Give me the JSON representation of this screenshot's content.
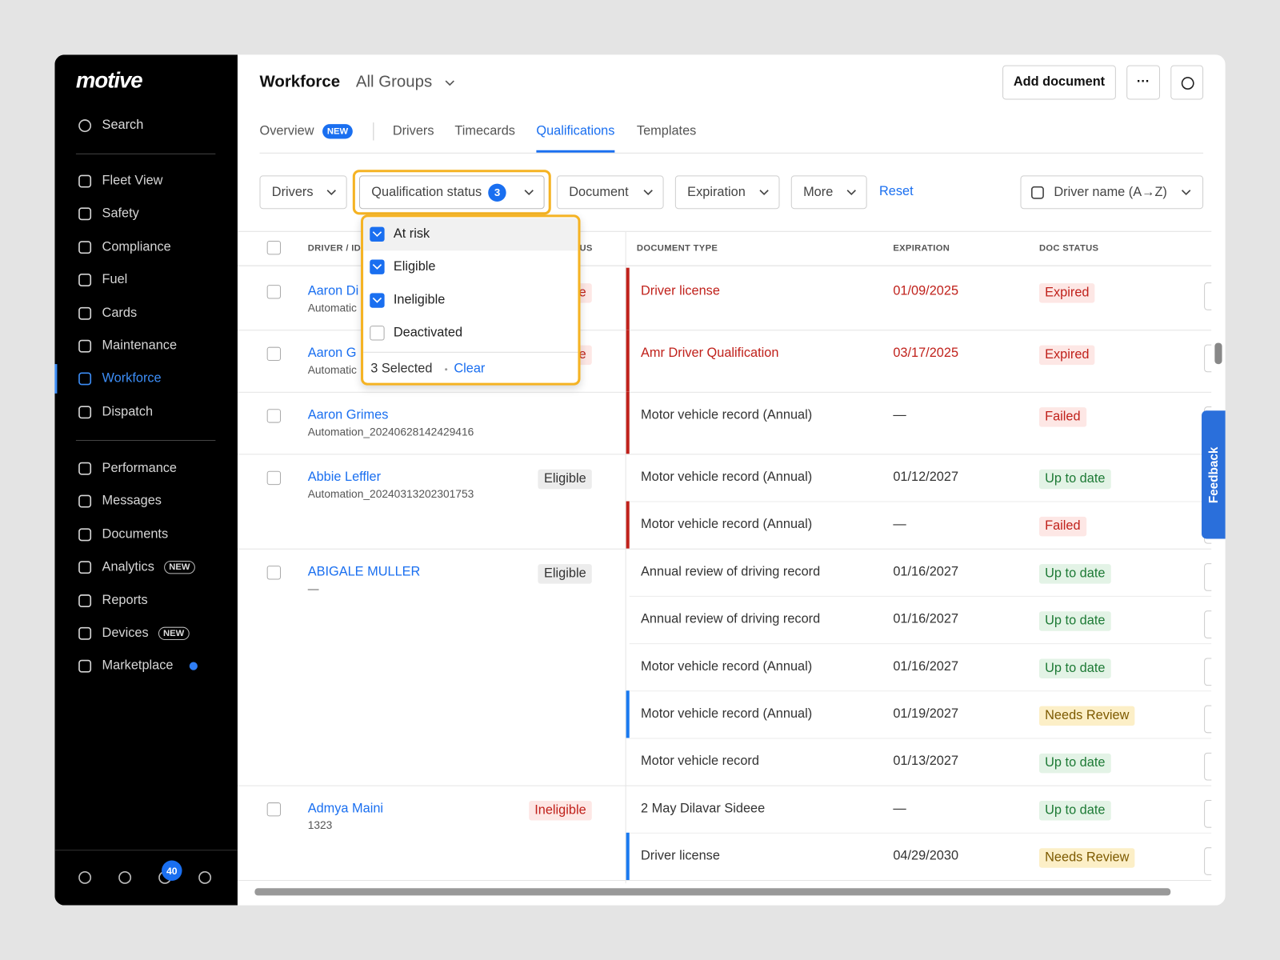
{
  "logo": "motive",
  "sidebar": {
    "search": "Search",
    "nav": [
      {
        "label": "Fleet View"
      },
      {
        "label": "Safety"
      },
      {
        "label": "Compliance"
      },
      {
        "label": "Fuel"
      },
      {
        "label": "Cards"
      },
      {
        "label": "Maintenance"
      },
      {
        "label": "Workforce",
        "active": true
      },
      {
        "label": "Dispatch"
      }
    ],
    "nav2": [
      {
        "label": "Performance"
      },
      {
        "label": "Messages"
      },
      {
        "label": "Documents"
      },
      {
        "label": "Analytics",
        "badge": "NEW"
      },
      {
        "label": "Reports"
      },
      {
        "label": "Devices",
        "badge": "NEW"
      },
      {
        "label": "Marketplace",
        "dot": true
      }
    ],
    "notifications": 40
  },
  "header": {
    "title": "Workforce",
    "group": "All Groups",
    "add_button": "Add document",
    "more_button": "···"
  },
  "tabs": [
    {
      "label": "Overview",
      "badge": "NEW"
    },
    {
      "label": "Drivers"
    },
    {
      "label": "Timecards"
    },
    {
      "label": "Qualifications",
      "active": true
    },
    {
      "label": "Templates"
    }
  ],
  "filters": [
    {
      "label": "Drivers"
    },
    {
      "label": "Qualification status",
      "count": 3,
      "open": true
    },
    {
      "label": "Document"
    },
    {
      "label": "Expiration"
    },
    {
      "label": "More"
    }
  ],
  "reset": "Reset",
  "sort": "Driver name (A→Z)",
  "dropdown": {
    "options": [
      {
        "label": "At risk",
        "checked": true
      },
      {
        "label": "Eligible",
        "checked": true
      },
      {
        "label": "Ineligible",
        "checked": true
      },
      {
        "label": "Deactivated",
        "checked": false
      }
    ],
    "selected": "3 Selected",
    "clear": "Clear"
  },
  "table": {
    "columns": [
      "DRIVER / ID",
      "US",
      "DOCUMENT TYPE",
      "EXPIRATION",
      "DOC STATUS"
    ],
    "drivers": [
      {
        "name": "Aaron Di",
        "id": "Automatic",
        "status": "e",
        "tone": "danger",
        "docs": [
          {
            "type": "Driver license",
            "expiration": "01/09/2025",
            "status": "Expired",
            "tone": "danger",
            "alert": true,
            "flag": "red"
          }
        ]
      },
      {
        "name": "Aaron G",
        "id": "Automatic",
        "status": "e",
        "tone": "danger",
        "docs": [
          {
            "type": "Amr Driver Qualification",
            "expiration": "03/17/2025",
            "status": "Expired",
            "tone": "danger",
            "alert": true,
            "flag": "red"
          }
        ]
      },
      {
        "name": "Aaron Grimes",
        "id": "Automation_20240628142429416",
        "docs": [
          {
            "type": "Motor vehicle record (Annual)",
            "expiration": "—",
            "status": "Failed",
            "tone": "danger",
            "flag": "red"
          }
        ]
      },
      {
        "name": "Abbie Leffler",
        "id": "Automation_20240313202301753",
        "status": "Eligible",
        "tone": "neutral",
        "docs": [
          {
            "type": "Motor vehicle record (Annual)",
            "expiration": "01/12/2027",
            "status": "Up to date",
            "tone": "success"
          },
          {
            "type": "Motor vehicle record (Annual)",
            "expiration": "—",
            "status": "Failed",
            "tone": "danger",
            "flag": "red"
          }
        ]
      },
      {
        "name": "ABIGALE MULLER",
        "id": "—",
        "status": "Eligible",
        "tone": "neutral",
        "docs": [
          {
            "type": "Annual review of driving record",
            "expiration": "01/16/2027",
            "status": "Up to date",
            "tone": "success"
          },
          {
            "type": "Annual review of driving record",
            "expiration": "01/16/2027",
            "status": "Up to date",
            "tone": "success"
          },
          {
            "type": "Motor vehicle record (Annual)",
            "expiration": "01/16/2027",
            "status": "Up to date",
            "tone": "success"
          },
          {
            "type": "Motor vehicle record (Annual)",
            "expiration": "01/19/2027",
            "status": "Needs Review",
            "tone": "warning",
            "flag": "blue"
          },
          {
            "type": "Motor vehicle record",
            "expiration": "01/13/2027",
            "status": "Up to date",
            "tone": "success"
          }
        ]
      },
      {
        "name": "Admya Maini",
        "id": "1323",
        "status": "Ineligible",
        "tone": "danger",
        "docs": [
          {
            "type": "2 May Dilavar Sideee",
            "expiration": "—",
            "status": "Up to date",
            "tone": "success"
          },
          {
            "type": "Driver license",
            "expiration": "04/29/2030",
            "status": "Needs Review",
            "tone": "warning",
            "flag": "blue"
          }
        ]
      }
    ]
  },
  "feedback": "Feedback"
}
